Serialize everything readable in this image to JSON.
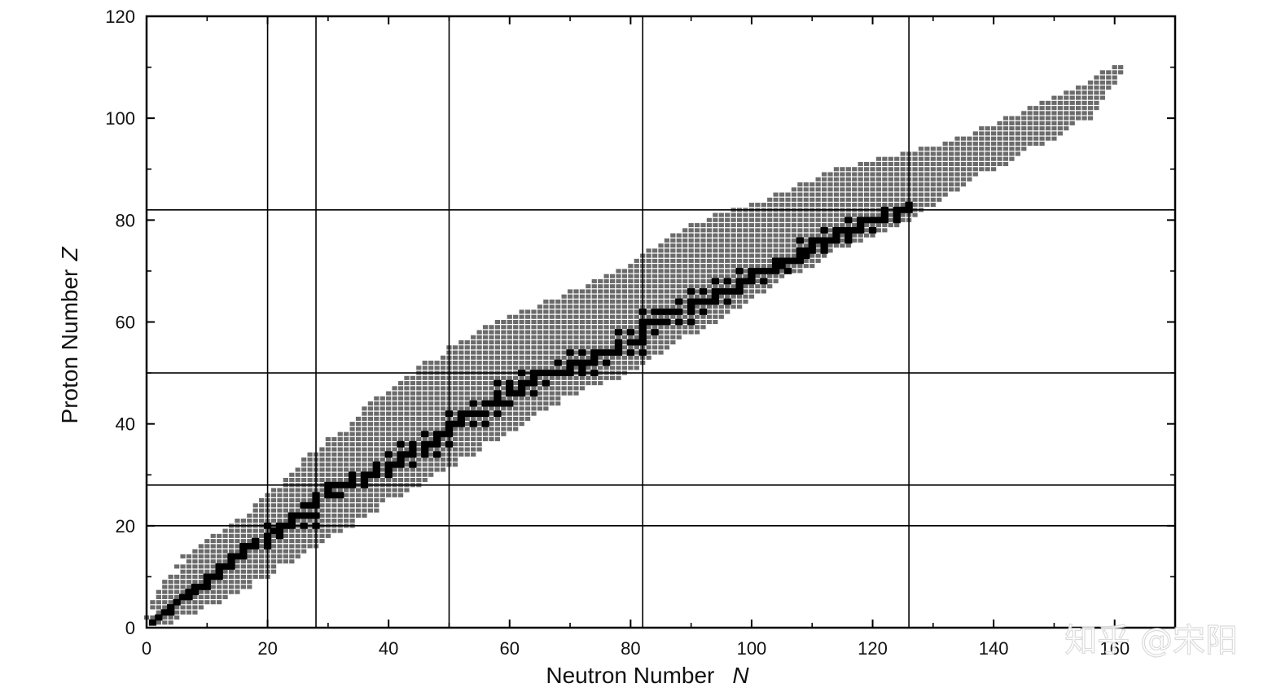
{
  "chart_data": {
    "type": "scatter",
    "xlabel": "Neutron Number",
    "xlabel_symbol": "N",
    "ylabel": "Proton Number",
    "ylabel_symbol": "Z",
    "xlim": [
      0,
      170
    ],
    "ylim": [
      0,
      120
    ],
    "x_ticks": [
      "0",
      "20",
      "40",
      "60",
      "80",
      "100",
      "120",
      "140",
      "160"
    ],
    "y_ticks": [
      "0",
      "20",
      "40",
      "60",
      "80",
      "100",
      "120"
    ],
    "magic_numbers_N": [
      20,
      28,
      50,
      82,
      126
    ],
    "magic_numbers_Z": [
      20,
      28,
      50,
      82
    ],
    "grid": false,
    "series": [
      {
        "role": "known nuclides",
        "color": "#6b6b6b",
        "bands": [
          {
            "z": 1,
            "n_min": 0,
            "n_max": 4
          },
          {
            "z": 5,
            "n_min": 1,
            "n_max": 12
          },
          {
            "z": 10,
            "n_min": 4,
            "n_max": 20
          },
          {
            "z": 15,
            "n_min": 7,
            "n_max": 26
          },
          {
            "z": 20,
            "n_min": 14,
            "n_max": 34
          },
          {
            "z": 25,
            "n_min": 19,
            "n_max": 40
          },
          {
            "z": 30,
            "n_min": 24,
            "n_max": 48
          },
          {
            "z": 35,
            "n_min": 28,
            "n_max": 55
          },
          {
            "z": 40,
            "n_min": 34,
            "n_max": 62
          },
          {
            "z": 45,
            "n_min": 38,
            "n_max": 69
          },
          {
            "z": 50,
            "n_min": 44,
            "n_max": 80
          },
          {
            "z": 55,
            "n_min": 50,
            "n_max": 86
          },
          {
            "z": 60,
            "n_min": 58,
            "n_max": 94
          },
          {
            "z": 65,
            "n_min": 68,
            "n_max": 100
          },
          {
            "z": 70,
            "n_min": 78,
            "n_max": 108
          },
          {
            "z": 75,
            "n_min": 84,
            "n_max": 116
          },
          {
            "z": 80,
            "n_min": 92,
            "n_max": 126
          },
          {
            "z": 85,
            "n_min": 104,
            "n_max": 132
          },
          {
            "z": 90,
            "n_min": 114,
            "n_max": 140
          },
          {
            "z": 95,
            "n_min": 132,
            "n_max": 148
          },
          {
            "z": 100,
            "n_min": 142,
            "n_max": 156
          },
          {
            "z": 105,
            "n_min": 152,
            "n_max": 158
          },
          {
            "z": 110,
            "n_min": 160,
            "n_max": 162
          }
        ]
      },
      {
        "role": "stable nuclides",
        "color": "#000000",
        "points": [
          [
            1,
            1
          ],
          [
            2,
            2
          ],
          [
            3,
            3
          ],
          [
            4,
            3
          ],
          [
            4,
            4
          ],
          [
            5,
            5
          ],
          [
            6,
            6
          ],
          [
            7,
            6
          ],
          [
            7,
            7
          ],
          [
            8,
            7
          ],
          [
            8,
            8
          ],
          [
            9,
            8
          ],
          [
            10,
            8
          ],
          [
            10,
            9
          ],
          [
            10,
            10
          ],
          [
            11,
            10
          ],
          [
            12,
            10
          ],
          [
            12,
            11
          ],
          [
            12,
            12
          ],
          [
            13,
            12
          ],
          [
            14,
            12
          ],
          [
            14,
            13
          ],
          [
            14,
            14
          ],
          [
            15,
            14
          ],
          [
            16,
            14
          ],
          [
            16,
            15
          ],
          [
            16,
            16
          ],
          [
            17,
            16
          ],
          [
            18,
            16
          ],
          [
            18,
            17
          ],
          [
            20,
            16
          ],
          [
            20,
            17
          ],
          [
            20,
            18
          ],
          [
            22,
            18
          ],
          [
            21,
            19
          ],
          [
            22,
            19
          ],
          [
            20,
            20
          ],
          [
            22,
            20
          ],
          [
            23,
            20
          ],
          [
            24,
            20
          ],
          [
            26,
            20
          ],
          [
            28,
            20
          ],
          [
            24,
            21
          ],
          [
            24,
            22
          ],
          [
            25,
            22
          ],
          [
            26,
            22
          ],
          [
            27,
            22
          ],
          [
            28,
            22
          ],
          [
            26,
            24
          ],
          [
            27,
            24
          ],
          [
            28,
            24
          ],
          [
            28,
            25
          ],
          [
            28,
            26
          ],
          [
            30,
            26
          ],
          [
            31,
            26
          ],
          [
            32,
            26
          ],
          [
            30,
            27
          ],
          [
            31,
            28
          ],
          [
            30,
            28
          ],
          [
            32,
            28
          ],
          [
            33,
            28
          ],
          [
            34,
            28
          ],
          [
            36,
            28
          ],
          [
            34,
            29
          ],
          [
            36,
            29
          ],
          [
            34,
            30
          ],
          [
            36,
            30
          ],
          [
            37,
            30
          ],
          [
            38,
            30
          ],
          [
            40,
            30
          ],
          [
            38,
            31
          ],
          [
            40,
            31
          ],
          [
            38,
            32
          ],
          [
            40,
            32
          ],
          [
            41,
            32
          ],
          [
            42,
            32
          ],
          [
            44,
            32
          ],
          [
            42,
            33
          ],
          [
            40,
            34
          ],
          [
            42,
            34
          ],
          [
            43,
            34
          ],
          [
            44,
            34
          ],
          [
            46,
            34
          ],
          [
            48,
            34
          ],
          [
            44,
            35
          ],
          [
            46,
            35
          ],
          [
            42,
            36
          ],
          [
            44,
            36
          ],
          [
            46,
            36
          ],
          [
            47,
            36
          ],
          [
            48,
            36
          ],
          [
            50,
            36
          ],
          [
            48,
            37
          ],
          [
            50,
            38
          ],
          [
            46,
            38
          ],
          [
            48,
            38
          ],
          [
            49,
            38
          ],
          [
            50,
            39
          ],
          [
            50,
            40
          ],
          [
            51,
            40
          ],
          [
            52,
            40
          ],
          [
            54,
            40
          ],
          [
            56,
            40
          ],
          [
            52,
            41
          ],
          [
            50,
            42
          ],
          [
            52,
            42
          ],
          [
            53,
            42
          ],
          [
            54,
            42
          ],
          [
            55,
            42
          ],
          [
            56,
            42
          ],
          [
            58,
            42
          ],
          [
            54,
            44
          ],
          [
            56,
            44
          ],
          [
            57,
            44
          ],
          [
            58,
            44
          ],
          [
            59,
            44
          ],
          [
            60,
            44
          ],
          [
            58,
            45
          ],
          [
            58,
            46
          ],
          [
            60,
            46
          ],
          [
            61,
            46
          ],
          [
            62,
            46
          ],
          [
            64,
            46
          ],
          [
            60,
            47
          ],
          [
            62,
            47
          ],
          [
            58,
            48
          ],
          [
            60,
            48
          ],
          [
            62,
            48
          ],
          [
            63,
            48
          ],
          [
            64,
            48
          ],
          [
            66,
            48
          ],
          [
            64,
            49
          ],
          [
            62,
            50
          ],
          [
            64,
            50
          ],
          [
            65,
            50
          ],
          [
            66,
            50
          ],
          [
            67,
            50
          ],
          [
            68,
            50
          ],
          [
            69,
            50
          ],
          [
            70,
            50
          ],
          [
            72,
            50
          ],
          [
            74,
            50
          ],
          [
            70,
            51
          ],
          [
            72,
            51
          ],
          [
            68,
            52
          ],
          [
            70,
            52
          ],
          [
            71,
            52
          ],
          [
            72,
            52
          ],
          [
            73,
            52
          ],
          [
            74,
            52
          ],
          [
            76,
            52
          ],
          [
            74,
            53
          ],
          [
            70,
            54
          ],
          [
            72,
            54
          ],
          [
            74,
            54
          ],
          [
            75,
            54
          ],
          [
            76,
            54
          ],
          [
            77,
            54
          ],
          [
            78,
            54
          ],
          [
            80,
            54
          ],
          [
            82,
            54
          ],
          [
            78,
            55
          ],
          [
            78,
            56
          ],
          [
            80,
            56
          ],
          [
            81,
            56
          ],
          [
            82,
            56
          ],
          [
            82,
            57
          ],
          [
            78,
            58
          ],
          [
            80,
            58
          ],
          [
            82,
            58
          ],
          [
            84,
            58
          ],
          [
            82,
            59
          ],
          [
            82,
            60
          ],
          [
            83,
            60
          ],
          [
            84,
            60
          ],
          [
            85,
            60
          ],
          [
            86,
            60
          ],
          [
            88,
            60
          ],
          [
            90,
            60
          ],
          [
            82,
            62
          ],
          [
            84,
            62
          ],
          [
            85,
            62
          ],
          [
            86,
            62
          ],
          [
            87,
            62
          ],
          [
            88,
            62
          ],
          [
            90,
            62
          ],
          [
            92,
            62
          ],
          [
            90,
            63
          ],
          [
            88,
            64
          ],
          [
            90,
            64
          ],
          [
            91,
            64
          ],
          [
            92,
            64
          ],
          [
            93,
            64
          ],
          [
            94,
            64
          ],
          [
            96,
            64
          ],
          [
            94,
            65
          ],
          [
            90,
            66
          ],
          [
            92,
            66
          ],
          [
            94,
            66
          ],
          [
            95,
            66
          ],
          [
            96,
            66
          ],
          [
            97,
            66
          ],
          [
            98,
            66
          ],
          [
            98,
            67
          ],
          [
            94,
            68
          ],
          [
            96,
            68
          ],
          [
            98,
            68
          ],
          [
            99,
            68
          ],
          [
            100,
            68
          ],
          [
            102,
            68
          ],
          [
            100,
            69
          ],
          [
            98,
            70
          ],
          [
            100,
            70
          ],
          [
            101,
            70
          ],
          [
            102,
            70
          ],
          [
            103,
            70
          ],
          [
            104,
            70
          ],
          [
            106,
            70
          ],
          [
            104,
            71
          ],
          [
            105,
            71
          ],
          [
            104,
            72
          ],
          [
            105,
            72
          ],
          [
            106,
            72
          ],
          [
            107,
            72
          ],
          [
            108,
            72
          ],
          [
            108,
            73
          ],
          [
            109,
            73
          ],
          [
            108,
            74
          ],
          [
            109,
            74
          ],
          [
            110,
            74
          ],
          [
            112,
            74
          ],
          [
            110,
            75
          ],
          [
            112,
            75
          ],
          [
            108,
            76
          ],
          [
            110,
            76
          ],
          [
            111,
            76
          ],
          [
            112,
            76
          ],
          [
            113,
            76
          ],
          [
            114,
            76
          ],
          [
            116,
            76
          ],
          [
            114,
            77
          ],
          [
            116,
            77
          ],
          [
            112,
            78
          ],
          [
            114,
            78
          ],
          [
            115,
            78
          ],
          [
            116,
            78
          ],
          [
            117,
            78
          ],
          [
            118,
            78
          ],
          [
            120,
            78
          ],
          [
            118,
            79
          ],
          [
            116,
            80
          ],
          [
            118,
            80
          ],
          [
            119,
            80
          ],
          [
            120,
            80
          ],
          [
            121,
            80
          ],
          [
            122,
            80
          ],
          [
            124,
            80
          ],
          [
            122,
            81
          ],
          [
            124,
            81
          ],
          [
            122,
            82
          ],
          [
            124,
            82
          ],
          [
            125,
            82
          ],
          [
            126,
            82
          ],
          [
            126,
            83
          ]
        ]
      }
    ]
  },
  "watermark": {
    "text": "知乎 @宋阳"
  }
}
